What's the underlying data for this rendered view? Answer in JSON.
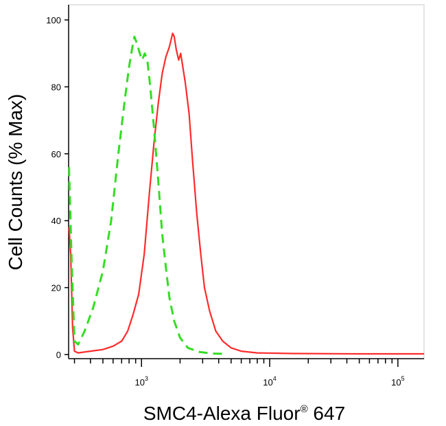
{
  "chart_data": {
    "type": "line",
    "xscale": "log",
    "xlim": [
      270,
      160000
    ],
    "ylim": [
      0,
      100
    ],
    "xlabel": "SMC4-Alexa Fluor",
    "xlabel_superscript": "®",
    "xlabel_suffix": " 647",
    "ylabel": "Cell Counts (% Max)",
    "grid": false,
    "legend": "none",
    "yticks": [
      {
        "value": 0,
        "label": "0"
      },
      {
        "value": 20,
        "label": "20"
      },
      {
        "value": 40,
        "label": "40"
      },
      {
        "value": 60,
        "label": "60"
      },
      {
        "value": 80,
        "label": "80"
      },
      {
        "value": 100,
        "label": "100"
      }
    ],
    "xticks_major": [
      {
        "value": 1000,
        "base": "10",
        "exp": "3"
      },
      {
        "value": 10000,
        "base": "10",
        "exp": "4"
      },
      {
        "value": 100000,
        "base": "10",
        "exp": "5"
      }
    ],
    "series": [
      {
        "color": "#ff2a2a",
        "dash": "solid",
        "points": [
          [
            272,
            38
          ],
          [
            280,
            30
          ],
          [
            290,
            8
          ],
          [
            300,
            1
          ],
          [
            320,
            0.5
          ],
          [
            400,
            1
          ],
          [
            500,
            1.5
          ],
          [
            600,
            2.5
          ],
          [
            700,
            4
          ],
          [
            780,
            7
          ],
          [
            860,
            12
          ],
          [
            950,
            18
          ],
          [
            1050,
            30
          ],
          [
            1150,
            48
          ],
          [
            1250,
            63
          ],
          [
            1350,
            75
          ],
          [
            1450,
            84
          ],
          [
            1550,
            89
          ],
          [
            1650,
            92
          ],
          [
            1750,
            96
          ],
          [
            1800,
            95
          ],
          [
            1870,
            91
          ],
          [
            1950,
            88
          ],
          [
            2020,
            90
          ],
          [
            2100,
            86
          ],
          [
            2200,
            81
          ],
          [
            2350,
            72
          ],
          [
            2500,
            58
          ],
          [
            2700,
            42
          ],
          [
            2900,
            30
          ],
          [
            3100,
            20
          ],
          [
            3400,
            13
          ],
          [
            3800,
            7
          ],
          [
            4300,
            4
          ],
          [
            5000,
            2
          ],
          [
            6000,
            1
          ],
          [
            8000,
            0.5
          ],
          [
            15000,
            0.3
          ],
          [
            50000,
            0.2
          ],
          [
            160000,
            0.2
          ]
        ]
      },
      {
        "color": "#33dd22",
        "dash": "dashed",
        "points": [
          [
            272,
            56
          ],
          [
            285,
            28
          ],
          [
            300,
            4
          ],
          [
            320,
            3
          ],
          [
            360,
            7
          ],
          [
            420,
            14
          ],
          [
            500,
            25
          ],
          [
            580,
            40
          ],
          [
            660,
            60
          ],
          [
            740,
            76
          ],
          [
            800,
            86
          ],
          [
            850,
            92
          ],
          [
            880,
            95
          ],
          [
            920,
            93
          ],
          [
            970,
            90
          ],
          [
            1010,
            88
          ],
          [
            1060,
            90
          ],
          [
            1110,
            88
          ],
          [
            1170,
            80
          ],
          [
            1250,
            68
          ],
          [
            1350,
            52
          ],
          [
            1450,
            36
          ],
          [
            1550,
            26
          ],
          [
            1650,
            17
          ],
          [
            1800,
            10
          ],
          [
            2000,
            5
          ],
          [
            2300,
            2
          ],
          [
            2800,
            0.8
          ],
          [
            3500,
            0.3
          ],
          [
            4500,
            0.2
          ]
        ]
      }
    ]
  }
}
